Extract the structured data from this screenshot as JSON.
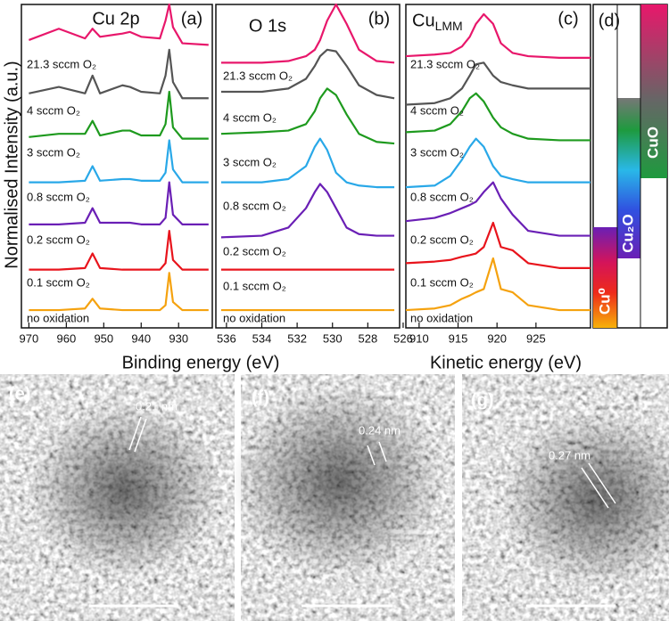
{
  "y_axis_title": "Normalised Intensity (a.u.)",
  "chart_data": [
    {
      "type": "line",
      "title": "Cu 2p",
      "panel_label": "(a)",
      "xlabel": "Binding energy (eV)",
      "xlim": [
        972,
        921
      ],
      "xticks": [
        970,
        960,
        950,
        940,
        930
      ],
      "ylim": [
        0,
        100
      ],
      "x": [
        970,
        962,
        955,
        953,
        951,
        945,
        943,
        940,
        935,
        933.5,
        932.5,
        931.5,
        929,
        922
      ],
      "series": [
        {
          "name": "no oxidation",
          "color": "#f5a20f",
          "values": [
            5.5,
            5.5,
            6,
            9,
            6,
            5.5,
            5.5,
            5.5,
            5.5,
            7,
            17,
            8,
            5.5,
            5.5
          ]
        },
        {
          "name": "0.1 sccm O₂",
          "color": "#e8141c",
          "values": [
            18,
            18,
            18.5,
            23,
            18.5,
            18,
            18,
            18,
            18,
            20,
            30,
            21,
            18,
            18
          ]
        },
        {
          "name": "0.2 sccm O₂",
          "color": "#6a1fb5",
          "values": [
            32,
            32,
            32.5,
            37,
            32.5,
            32.5,
            32.5,
            32,
            32,
            34,
            45,
            35,
            32,
            32
          ]
        },
        {
          "name": "0.8 sccm O₂",
          "color": "#29a8e8",
          "values": [
            45,
            45,
            45.5,
            50,
            45.5,
            46,
            46,
            45.5,
            45.5,
            48,
            58,
            49,
            45,
            45
          ]
        },
        {
          "name": "3 sccm O₂",
          "color": "#1e9a1e",
          "values": [
            59,
            60,
            60,
            64,
            59.5,
            61,
            61,
            59.5,
            59.5,
            63,
            73,
            62,
            58.5,
            58.5
          ]
        },
        {
          "name": "4 sccm O₂",
          "color": "#555555",
          "values": [
            72.5,
            74.5,
            72.5,
            78,
            72.5,
            75,
            74.5,
            73,
            72.5,
            78,
            86,
            76,
            71,
            71
          ]
        },
        {
          "name": "21.3 sccm O₂",
          "color": "#e8176b",
          "values": [
            89,
            92.5,
            89.5,
            92.5,
            90,
            91,
            91.5,
            90,
            89.5,
            95,
            100,
            93,
            88,
            87.5
          ]
        }
      ]
    },
    {
      "type": "line",
      "title": "O 1s",
      "panel_label": "(b)",
      "xlim": [
        536.6,
        526.2
      ],
      "xticks": [
        536,
        534,
        532,
        530,
        528,
        526
      ],
      "ylim": [
        0,
        100
      ],
      "x": [
        536.3,
        534,
        532.5,
        531.5,
        531,
        530.7,
        530.3,
        529.8,
        529.2,
        528.5,
        527.5,
        526.5
      ],
      "series": [
        {
          "name": "no oxidation",
          "color": "#f5a20f",
          "values": [
            5.5,
            5.5,
            5.5,
            5.5,
            5.5,
            5.5,
            5.5,
            5.5,
            5.5,
            5.5,
            5.5,
            5.5
          ]
        },
        {
          "name": "0.1 sccm O₂",
          "color": "#e8141c",
          "values": [
            18,
            18,
            18,
            18,
            18,
            18,
            18,
            18,
            18,
            18,
            18,
            18
          ]
        },
        {
          "name": "0.2 sccm O₂",
          "color": "#6a1fb5",
          "values": [
            28,
            28.5,
            31,
            37,
            42,
            44.5,
            42,
            37,
            31,
            29,
            28.5,
            28.5
          ]
        },
        {
          "name": "0.8 sccm O₂",
          "color": "#29a8e8",
          "values": [
            45,
            45,
            46,
            50,
            56,
            58.5,
            55,
            48,
            45,
            44,
            43.5,
            43.5
          ]
        },
        {
          "name": "3 sccm O₂",
          "color": "#1e9a1e",
          "values": [
            60,
            60.5,
            61,
            63,
            67,
            71,
            74,
            72,
            66,
            60,
            57.5,
            57
          ]
        },
        {
          "name": "4 sccm O₂",
          "color": "#555555",
          "values": [
            73,
            73,
            74,
            77,
            81,
            84,
            86,
            85.5,
            81,
            75,
            72,
            71
          ]
        },
        {
          "name": "21.3 sccm O₂",
          "color": "#e8176b",
          "values": [
            82,
            82,
            82.5,
            84,
            86,
            89,
            95,
            100,
            94,
            86,
            82.5,
            82
          ]
        }
      ]
    },
    {
      "type": "line",
      "title": "Cu",
      "title_subscript": "LMM",
      "panel_label": "(c)",
      "xlabel": "Kinetic energy (eV)",
      "xlim": [
        908.3,
        932
      ],
      "xticks": [
        910,
        915,
        920,
        925
      ],
      "ylim": [
        0,
        100
      ],
      "x": [
        908.3,
        912,
        914,
        915.5,
        916.5,
        917.3,
        918.3,
        919.5,
        920.5,
        922,
        924,
        928,
        932
      ],
      "series": [
        {
          "name": "no oxidation",
          "color": "#f5a20f",
          "values": [
            5.5,
            6,
            7,
            9,
            10,
            11,
            12,
            21.5,
            12,
            11,
            7,
            5.5,
            5.5
          ]
        },
        {
          "name": "0.1 sccm O₂",
          "color": "#e8141c",
          "values": [
            20,
            20.5,
            21,
            22,
            22.5,
            23,
            25,
            32.5,
            25,
            24,
            20,
            18.5,
            18.5
          ]
        },
        {
          "name": "0.2 sccm O₂",
          "color": "#6a1fb5",
          "values": [
            33,
            34,
            35.5,
            37,
            38,
            39,
            42,
            45,
            40,
            35,
            30,
            28.5,
            28.5
          ]
        },
        {
          "name": "0.8 sccm O₂",
          "color": "#29a8e8",
          "values": [
            43.5,
            44,
            47,
            52,
            56,
            58.5,
            56,
            50,
            47,
            46,
            45,
            45,
            45
          ]
        },
        {
          "name": "3 sccm O₂",
          "color": "#1e9a1e",
          "values": [
            60.5,
            61,
            63,
            67,
            71,
            72.5,
            70,
            65,
            62,
            60,
            58.5,
            58,
            58
          ]
        },
        {
          "name": "4 sccm O₂",
          "color": "#555555",
          "values": [
            69,
            69.5,
            71,
            74,
            78,
            81.5,
            82,
            78,
            76,
            75,
            74,
            74,
            74
          ]
        },
        {
          "name": "21.3 sccm O₂",
          "color": "#e8176b",
          "values": [
            84,
            84.5,
            85,
            87,
            90,
            94,
            97,
            94,
            88,
            85,
            84,
            83.5,
            83.5
          ]
        }
      ]
    }
  ],
  "panel_d": {
    "label": "(d)",
    "bars": [
      "Cu⁰",
      "Cu₂O",
      "CuO"
    ]
  },
  "tem_images": [
    {
      "label": "(e)",
      "spacing": "0.21 nm"
    },
    {
      "label": "(f)",
      "spacing": "0.24 nm"
    },
    {
      "label": "(g)",
      "spacing": "0.27 nm"
    }
  ]
}
